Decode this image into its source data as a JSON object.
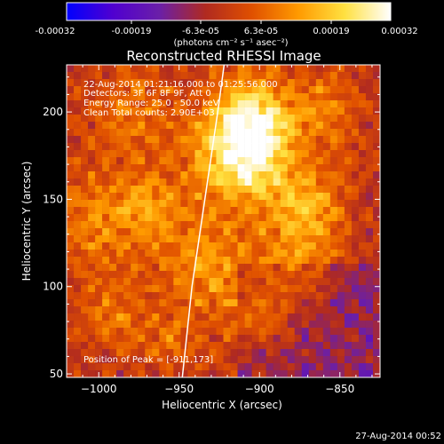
{
  "colorbar": {
    "tick_labels": [
      "-0.00032",
      "-0.00019",
      "-6.3e-05",
      "6.3e-05",
      "0.00019",
      "0.00032"
    ],
    "unit_label": "(photons cm⁻² s⁻¹ asec⁻²)",
    "colormap": [
      "#0000ff",
      "#5000d0",
      "#6a1fa8",
      "#b02a20",
      "#e05000",
      "#ff9a00",
      "#ffe040",
      "#ffffff"
    ]
  },
  "header": {
    "title": "Reconstructed RHESSI Image"
  },
  "overlay": {
    "line1": "22-Aug-2014 01:21:16.000 to 01:25:56.000",
    "line2": "Detectors: 3F 6F 8F 9F, Att 0",
    "line3": "Energy Range: 25.0 - 50.0 keV",
    "line4": "Clean    Total counts: 2.90E+03",
    "peak": "Position of Peak = [-911,173]"
  },
  "footer": {
    "timestamp": "27-Aug-2014 00:52"
  },
  "chart_data": {
    "type": "heatmap",
    "title": "Reconstructed RHESSI Image",
    "xlabel": "Heliocentric X (arcsec)",
    "ylabel": "Heliocentric Y (arcsec)",
    "xlim": [
      -1020,
      -825
    ],
    "ylim": [
      48,
      227
    ],
    "x_ticks": [
      -1000,
      -950,
      -900,
      -850
    ],
    "x_tick_labels": [
      "−1000",
      "−950",
      "−900",
      "−850"
    ],
    "y_ticks": [
      50,
      100,
      150,
      200
    ],
    "y_tick_labels": [
      "50",
      "100",
      "150",
      "200"
    ],
    "color_range": [
      -0.00032,
      0.00032
    ],
    "peak": [
      -911,
      173
    ],
    "limb_curve": [
      [
        -948,
        48
      ],
      [
        -942,
        100
      ],
      [
        -934,
        150
      ],
      [
        -926,
        200
      ],
      [
        -922,
        227
      ]
    ]
  }
}
